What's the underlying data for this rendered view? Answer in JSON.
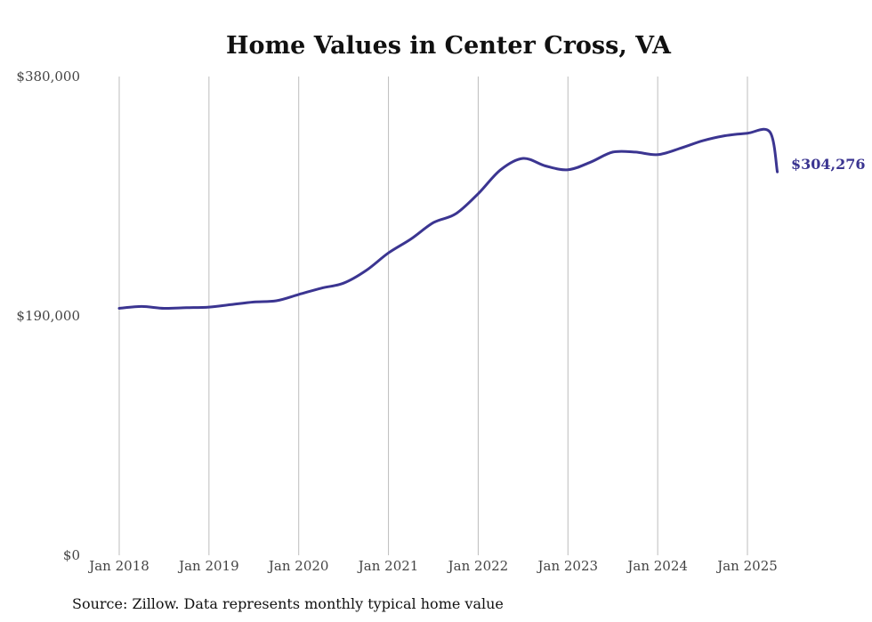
{
  "source_note": "Source: Zillow. Data represents monthly typical home value",
  "chart_data": {
    "type": "line",
    "title": "Home Values in Center Cross, VA",
    "xlabel": "",
    "ylabel": "",
    "ylim": [
      0,
      380000
    ],
    "yticks": [
      0,
      190000,
      380000
    ],
    "ytick_labels": [
      "$0",
      "$190,000",
      "$380,000"
    ],
    "xticks": [
      "2018-01",
      "2019-01",
      "2020-01",
      "2021-01",
      "2022-01",
      "2023-01",
      "2024-01",
      "2025-01"
    ],
    "xtick_labels": [
      "Jan 2018",
      "Jan 2019",
      "Jan 2020",
      "Jan 2021",
      "Jan 2022",
      "Jan 2023",
      "Jan 2024",
      "Jan 2025"
    ],
    "grid": "vertical",
    "color": "#3b3591",
    "end_label": "$304,276",
    "series": [
      {
        "x": [
          "2018-01",
          "2018-04",
          "2018-07",
          "2018-10",
          "2019-01",
          "2019-04",
          "2019-07",
          "2019-10",
          "2020-01",
          "2020-04",
          "2020-07",
          "2020-10",
          "2021-01",
          "2021-04",
          "2021-07",
          "2021-10",
          "2022-01",
          "2022-04",
          "2022-07",
          "2022-10",
          "2023-01",
          "2023-04",
          "2023-07",
          "2023-10",
          "2024-01",
          "2024-04",
          "2024-07",
          "2024-10",
          "2025-01",
          "2025-04",
          "2025-05"
        ],
        "values": [
          196000,
          197500,
          196000,
          196500,
          197000,
          199000,
          201000,
          202000,
          207000,
          212000,
          216000,
          226000,
          240000,
          251000,
          264000,
          271000,
          287000,
          306000,
          315000,
          309000,
          306000,
          312000,
          320000,
          320000,
          318000,
          323000,
          329000,
          333000,
          335000,
          336000,
          304276
        ]
      }
    ]
  }
}
